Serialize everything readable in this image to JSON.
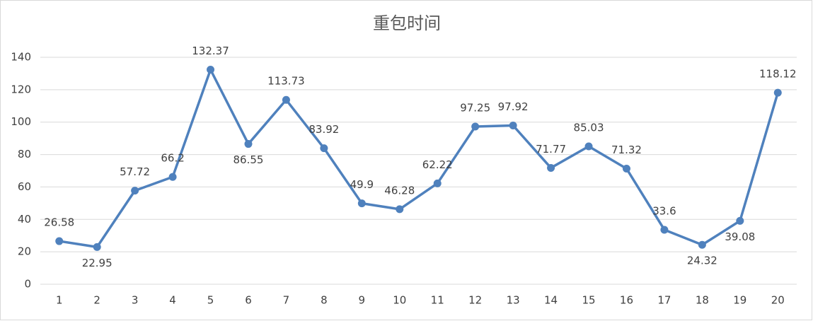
{
  "chart_data": {
    "type": "line",
    "title": "重包时间",
    "categories": [
      "1",
      "2",
      "3",
      "4",
      "5",
      "6",
      "7",
      "8",
      "9",
      "10",
      "11",
      "12",
      "13",
      "14",
      "15",
      "16",
      "17",
      "18",
      "19",
      "20"
    ],
    "values": [
      26.58,
      22.95,
      57.72,
      66.2,
      132.37,
      86.55,
      113.73,
      83.92,
      49.9,
      46.28,
      62.22,
      97.25,
      97.92,
      71.77,
      85.03,
      71.32,
      33.6,
      24.32,
      39.08,
      118.12
    ],
    "color": "#4f81bd",
    "ylim": [
      0,
      140
    ],
    "yticks": [
      0,
      20,
      40,
      60,
      80,
      100,
      120,
      140
    ],
    "grid": true
  }
}
